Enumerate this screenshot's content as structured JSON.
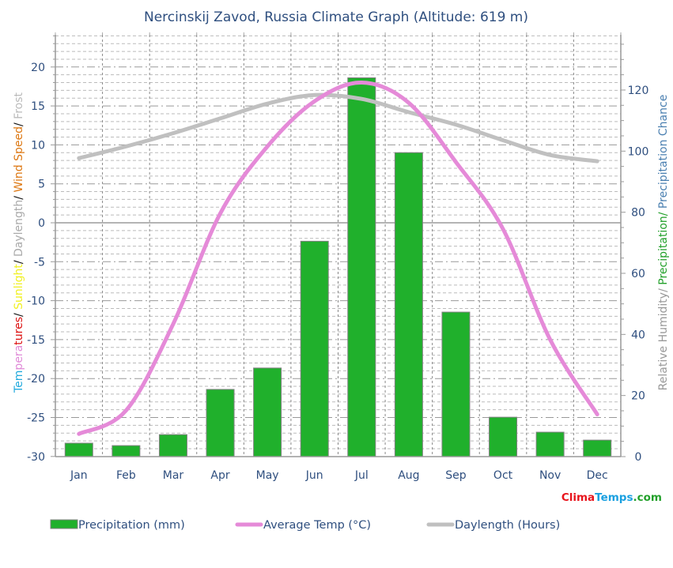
{
  "title": "Nercinskij Zavod, Russia Climate Graph (Altitude: 619 m)",
  "watermark": {
    "parts": [
      {
        "text": "Clima",
        "color": "#e8141c"
      },
      {
        "text": "Temps",
        "color": "#1aa0e0"
      },
      {
        "text": ".com",
        "color": "#22a02a"
      }
    ]
  },
  "left_axis_label": {
    "parts": [
      {
        "text": "Tem",
        "color": "#22aadd"
      },
      {
        "text": "pera",
        "color": "#e08ad8"
      },
      {
        "text": "tures",
        "color": "#dd1111"
      },
      {
        "text": "/ ",
        "color": "#111111"
      },
      {
        "text": "Sunlight",
        "color": "#f0f020"
      },
      {
        "text": "/ ",
        "color": "#111111"
      },
      {
        "text": "Daylength",
        "color": "#aaaaaa"
      },
      {
        "text": "/ ",
        "color": "#111111"
      },
      {
        "text": "Wind Speed",
        "color": "#dd7711"
      },
      {
        "text": "/ ",
        "color": "#111111"
      },
      {
        "text": "Frost",
        "color": "#bbbbbb"
      }
    ]
  },
  "right_axis_label": {
    "parts": [
      {
        "text": "Relative Humidity/ ",
        "color": "#999999"
      },
      {
        "text": "Precipitation/ ",
        "color": "#22a02a"
      },
      {
        "text": "Precipitation Chance",
        "color": "#4a7fb0"
      }
    ]
  },
  "legend": [
    {
      "label": "Precipitation (mm)",
      "type": "box",
      "color": "#20b02c"
    },
    {
      "label": "Average Temp (°C)",
      "type": "line",
      "color": "#e58ad8"
    },
    {
      "label": "Daylength (Hours)",
      "type": "line",
      "color": "#c0c0c0"
    }
  ],
  "colors": {
    "precip": "#20b02c",
    "precip_border": "#808080",
    "temp": "#e58ad8",
    "daylength": "#c0c0c0",
    "grid": "#aaaaaa",
    "axis": "#999999",
    "text": "#2f4f7f"
  },
  "chart_data": {
    "type": "bar",
    "title": "Nercinskij Zavod, Russia Climate Graph (Altitude: 619 m)",
    "categories": [
      "Jan",
      "Feb",
      "Mar",
      "Apr",
      "May",
      "Jun",
      "Jul",
      "Aug",
      "Sep",
      "Oct",
      "Nov",
      "Dec"
    ],
    "series": [
      {
        "name": "Precipitation (mm)",
        "type": "bar",
        "axis": "right",
        "values": [
          4.4,
          3.6,
          7.2,
          22,
          29,
          70.5,
          124,
          99.5,
          47.3,
          12.9,
          8,
          5.4
        ]
      },
      {
        "name": "Average Temp (°C)",
        "type": "line",
        "axis": "left",
        "values": [
          -27.1,
          -24.1,
          -13,
          1.2,
          9.8,
          15.6,
          18,
          15.4,
          7.8,
          -0.8,
          -15,
          -24.6
        ]
      },
      {
        "name": "Daylength (Hours)",
        "type": "line",
        "axis": "left",
        "values": [
          8.3,
          9.8,
          11.5,
          13.4,
          15.3,
          16.4,
          15.9,
          14.2,
          12.6,
          10.6,
          8.7,
          7.9
        ]
      }
    ],
    "left_axis": {
      "label": "Temperatures/ Sunlight/ Daylength/ Wind Speed/ Frost",
      "ticks": [
        -30,
        -25,
        -20,
        -15,
        -10,
        -5,
        0,
        5,
        10,
        15,
        20
      ],
      "range": [
        -30,
        24
      ]
    },
    "right_axis": {
      "label": "Relative Humidity/ Precipitation/ Precipitation Chance",
      "ticks": [
        0,
        20,
        40,
        60,
        80,
        100,
        120
      ],
      "range": [
        0,
        138
      ]
    },
    "xlabel": "",
    "grid": true,
    "legend_position": "bottom"
  }
}
